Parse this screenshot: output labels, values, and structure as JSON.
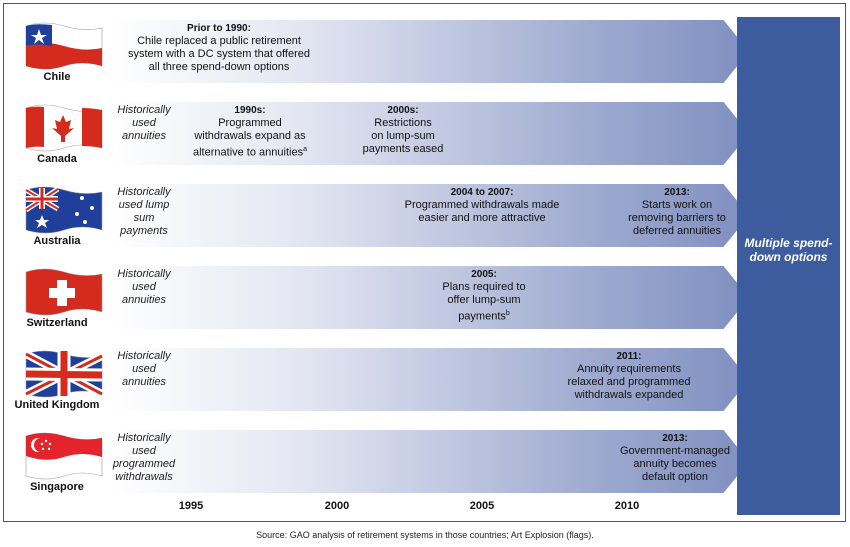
{
  "rows": [
    {
      "country": "Chile",
      "history": "",
      "annotations": [
        {
          "head": "Prior to 1990:",
          "lines": [
            "Chile replaced a public retirement",
            "system with a DC system that offered",
            "all three spend-down options"
          ],
          "note": ""
        }
      ]
    },
    {
      "country": "Canada",
      "history": "Historically used annuities",
      "annotations": [
        {
          "head": "1990s:",
          "lines": [
            "Programmed",
            "withdrawals expand as",
            "alternative to annuities"
          ],
          "note": "a"
        },
        {
          "head": "2000s:",
          "lines": [
            "Restrictions",
            "on lump-sum",
            "payments eased"
          ],
          "note": ""
        }
      ]
    },
    {
      "country": "Australia",
      "history": "Historically used lump sum payments",
      "annotations": [
        {
          "head": "2004 to 2007:",
          "lines": [
            "Programmed withdrawals made",
            "easier and more attractive"
          ],
          "note": ""
        },
        {
          "head": "2013:",
          "lines": [
            "Starts work on",
            "removing barriers to",
            "deferred annuities"
          ],
          "note": ""
        }
      ]
    },
    {
      "country": "Switzerland",
      "history": "Historically used annuities",
      "annotations": [
        {
          "head": "2005:",
          "lines": [
            "Plans required to",
            "offer lump-sum",
            "payments"
          ],
          "note": "b"
        }
      ]
    },
    {
      "country": "United Kingdom",
      "history": "Historically used annuities",
      "annotations": [
        {
          "head": "2011:",
          "lines": [
            "Annuity requirements",
            "relaxed and programmed",
            "withdrawals expanded"
          ],
          "note": ""
        }
      ]
    },
    {
      "country": "Singapore",
      "history": "Historically used programmed withdrawals",
      "annotations": [
        {
          "head": "2013:",
          "lines": [
            "Government-managed",
            "annuity becomes",
            "default option"
          ],
          "note": ""
        }
      ]
    }
  ],
  "outcome": "Multiple spend-down options",
  "years": [
    "1995",
    "2000",
    "2005",
    "2010"
  ],
  "source": "Source: GAO analysis of retirement systems in those countries; Art Explosion (flags).",
  "colors": {
    "outcome_box": "#3d5c9e",
    "arrow_dark": "#7f8fc0",
    "arrow_light": "#ffffff"
  }
}
